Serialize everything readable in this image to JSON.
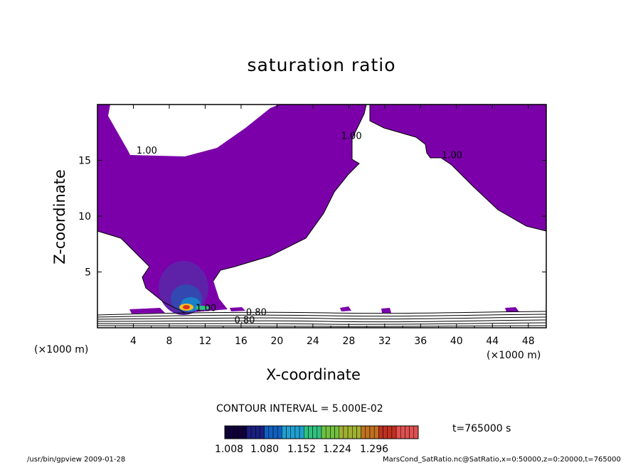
{
  "chart_data": {
    "type": "contour",
    "title": "saturation ratio",
    "xlabel": "X-coordinate",
    "ylabel": "Z-coordinate",
    "x_unit": "(×1000 m)",
    "z_unit": "(×1000 m)",
    "x_ticks": [
      4,
      8,
      12,
      16,
      20,
      24,
      28,
      32,
      36,
      40,
      44,
      48
    ],
    "z_ticks": [
      5,
      10,
      15
    ],
    "xlim": [
      0,
      50
    ],
    "ylim": [
      0,
      20
    ],
    "fill_color": "#7b00aa",
    "contour_labels": [
      {
        "text": "1.00",
        "x": 5.5,
        "z": 15.6
      },
      {
        "text": "1.00",
        "x": 28.3,
        "z": 16.9
      },
      {
        "text": "1.00",
        "x": 39.5,
        "z": 15.2
      },
      {
        "text": "1.00",
        "x": 12.1,
        "z": 1.5
      },
      {
        "text": "0.80",
        "x": 16.4,
        "z": 0.4
      },
      {
        "text": "0.80",
        "x": 17.7,
        "z": 1.1
      }
    ],
    "contour_interval_label": "CONTOUR INTERVAL = 5.000E-02",
    "colorbar": {
      "tick_labels": [
        "1.008",
        "1.080",
        "1.152",
        "1.224",
        "1.296"
      ],
      "min": 1.0,
      "max": 1.34,
      "colors": [
        "#10003a",
        "#1a2080",
        "#1060c0",
        "#20a0d0",
        "#30c080",
        "#70c040",
        "#a0b030",
        "#c07020",
        "#c03020",
        "#e05050"
      ]
    },
    "time_label": "t=765000 s"
  },
  "footer": {
    "left": "/usr/bin/gpview   2009-01-28",
    "right": "MarsCond_SatRatio.nc@SatRatio,x=0:50000,z=0:20000,t=765000"
  }
}
